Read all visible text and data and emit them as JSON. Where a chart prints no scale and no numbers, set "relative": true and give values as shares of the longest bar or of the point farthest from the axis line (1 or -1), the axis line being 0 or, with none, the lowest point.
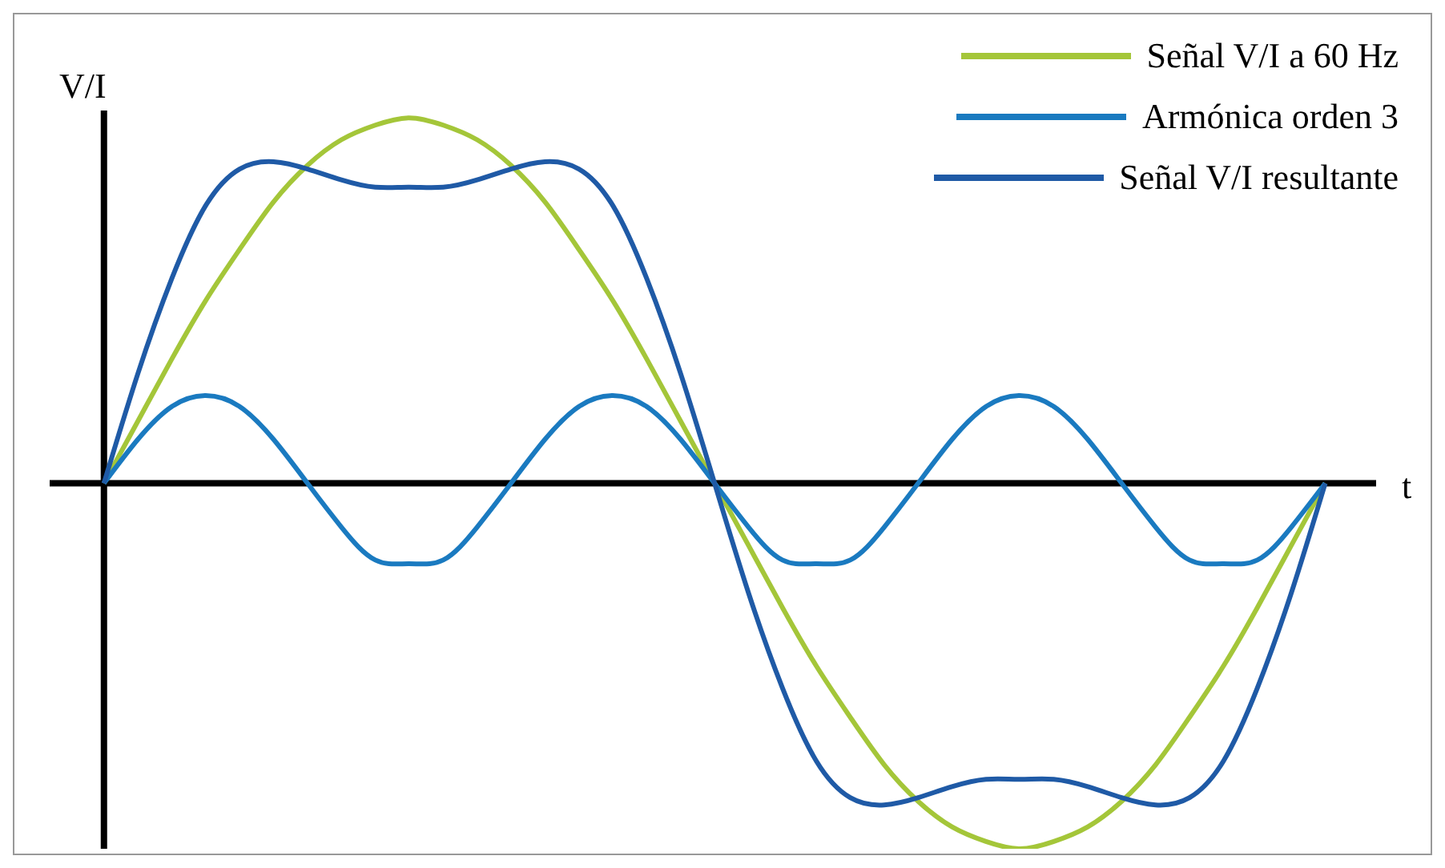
{
  "chart_data": {
    "type": "line",
    "relative": true,
    "xlabel": "t",
    "ylabel": "V/I",
    "legend": "top right",
    "tick_labels": false,
    "marker": "none",
    "line_style": "solid",
    "categories": [
      null,
      null,
      null,
      null,
      null,
      null,
      null,
      null,
      null,
      null,
      null,
      null,
      null,
      null,
      null,
      null,
      null,
      null,
      null,
      null,
      null,
      null,
      null,
      null,
      null,
      null,
      null,
      null,
      null,
      null,
      null,
      null,
      null,
      null,
      null,
      null,
      null
    ],
    "series": [
      {
        "name": "Señal V/I a 60 Hz",
        "color": "#a4c639",
        "values": [
          0,
          0.17,
          0.34,
          0.5,
          0.64,
          0.77,
          0.87,
          0.94,
          0.98,
          1,
          0.98,
          0.94,
          0.87,
          0.77,
          0.64,
          0.5,
          0.34,
          0.17,
          0,
          -0.17,
          -0.34,
          -0.5,
          -0.64,
          -0.77,
          -0.87,
          -0.94,
          -0.98,
          -1,
          -0.98,
          -0.94,
          -0.87,
          -0.77,
          -0.64,
          -0.5,
          -0.34,
          -0.17,
          0
        ]
      },
      {
        "name": "Armónica orden 3",
        "color": "#1a7ac0",
        "values": [
          0,
          0.12,
          0.21,
          0.24,
          0.21,
          0.12,
          0,
          -0.12,
          -0.21,
          -0.22,
          -0.21,
          -0.12,
          0,
          0.12,
          0.21,
          0.24,
          0.21,
          0.12,
          0,
          -0.12,
          -0.21,
          -0.22,
          -0.21,
          -0.12,
          0,
          0.12,
          0.21,
          0.24,
          0.21,
          0.12,
          0,
          -0.12,
          -0.21,
          -0.22,
          -0.21,
          -0.12,
          0
        ]
      },
      {
        "name": "Señal V/I resultante",
        "color": "#1f5aa6",
        "values": [
          0,
          0.3,
          0.56,
          0.76,
          0.86,
          0.88,
          0.86,
          0.83,
          0.81,
          0.81,
          0.81,
          0.83,
          0.86,
          0.88,
          0.86,
          0.76,
          0.56,
          0.3,
          0,
          -0.3,
          -0.56,
          -0.76,
          -0.86,
          -0.88,
          -0.86,
          -0.83,
          -0.81,
          -0.81,
          -0.81,
          -0.83,
          -0.86,
          -0.88,
          -0.86,
          -0.76,
          -0.56,
          -0.3,
          0
        ]
      }
    ]
  }
}
